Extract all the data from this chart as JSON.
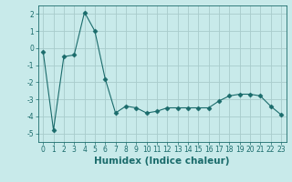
{
  "x": [
    0,
    1,
    2,
    3,
    4,
    5,
    6,
    7,
    8,
    9,
    10,
    11,
    12,
    13,
    14,
    15,
    16,
    17,
    18,
    19,
    20,
    21,
    22,
    23
  ],
  "y": [
    -0.2,
    -4.8,
    -0.5,
    -0.4,
    2.1,
    1.0,
    -1.8,
    -3.8,
    -3.4,
    -3.5,
    -3.8,
    -3.7,
    -3.5,
    -3.5,
    -3.5,
    -3.5,
    -3.5,
    -3.1,
    -2.8,
    -2.7,
    -2.7,
    -2.8,
    -3.4,
    -3.9
  ],
  "line_color": "#1a6b6b",
  "marker": "D",
  "marker_size": 2.5,
  "bg_color": "#c8eaea",
  "grid_color": "#a8cccc",
  "xlabel": "Humidex (Indice chaleur)",
  "ylim": [
    -5.5,
    2.5
  ],
  "xlim": [
    -0.5,
    23.5
  ],
  "yticks": [
    -5,
    -4,
    -3,
    -2,
    -1,
    0,
    1,
    2
  ],
  "xticks": [
    0,
    1,
    2,
    3,
    4,
    5,
    6,
    7,
    8,
    9,
    10,
    11,
    12,
    13,
    14,
    15,
    16,
    17,
    18,
    19,
    20,
    21,
    22,
    23
  ],
  "tick_label_fontsize": 5.5,
  "xlabel_fontsize": 7.5
}
